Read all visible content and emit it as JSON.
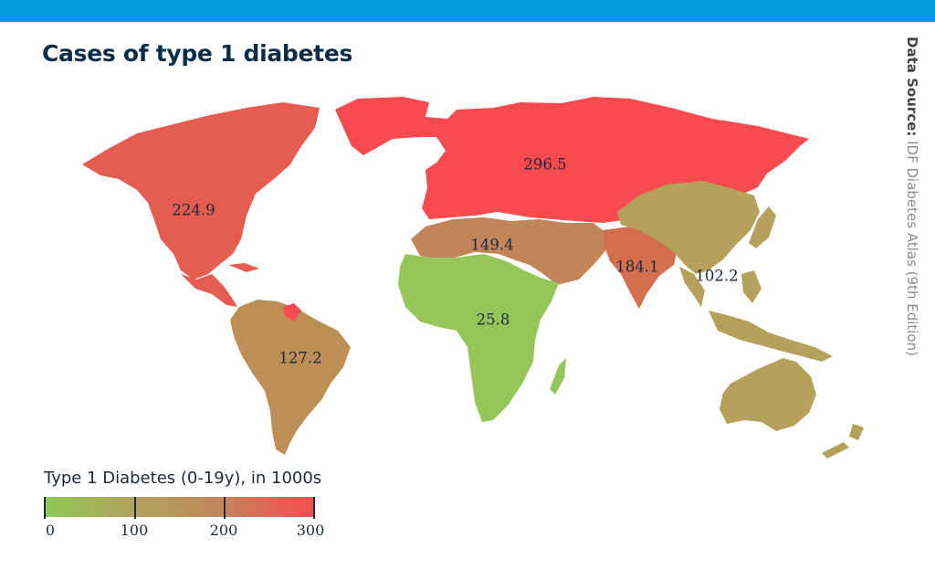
{
  "title": "Cases of type 1 diabetes",
  "source": {
    "label": "Data Source:",
    "value": "IDF Diabetes Atlas (9th Edition)"
  },
  "colors": {
    "header_bar": "#049ee0",
    "europe": "#f84b4f",
    "north_america": "#e55d51",
    "south_east_asia": "#d36f4f",
    "mena": "#c2855a",
    "south_central_america": "#bd8f57",
    "western_pacific": "#b5a15b",
    "africa": "#96c55a"
  },
  "regions": [
    {
      "name": "Europe",
      "value": "296.5"
    },
    {
      "name": "North America and Caribbean",
      "value": "224.9"
    },
    {
      "name": "Middle East and North Africa",
      "value": "149.4"
    },
    {
      "name": "South-East Asia",
      "value": "184.1"
    },
    {
      "name": "Western Pacific",
      "value": "102.2"
    },
    {
      "name": "South and Central America",
      "value": "127.2"
    },
    {
      "name": "Africa",
      "value": "25.8"
    }
  ],
  "legend": {
    "title": "Type 1 Diabetes (0-19y), in 1000s",
    "ticks": [
      {
        "label": "0",
        "value": 0
      },
      {
        "label": "100",
        "value": 100
      },
      {
        "label": "200",
        "value": 200
      },
      {
        "label": "300",
        "value": 300
      }
    ],
    "range": [
      0,
      300
    ],
    "gradient": [
      "#8ec957",
      "#b1a35e",
      "#c2855a",
      "#f84b4f"
    ]
  }
}
